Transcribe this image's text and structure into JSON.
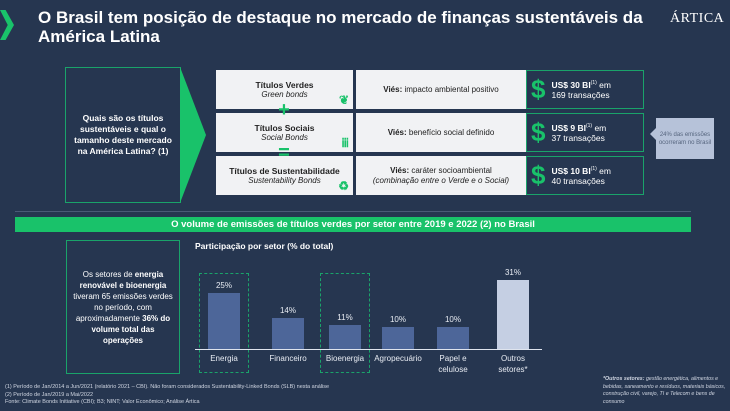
{
  "header": {
    "title": "O Brasil tem posição de destaque no mercado de finanças sustentáveis da América Latina",
    "logo": "ÁRTICA"
  },
  "question": "Quais são os títulos sustentáveis e qual o tamanho deste mercado na América Latina? (1)",
  "bonds": [
    {
      "name": "Títulos Verdes",
      "en": "Green bonds",
      "icon": "plant-in-hand-icon",
      "vies_label": "Viés:",
      "vies": " impacto ambiental positivo",
      "vies_it": "",
      "amount": "US$ 30 BI",
      "sup": "(1)",
      "em": " em",
      "trans": "169 transações"
    },
    {
      "name": "Títulos Sociais",
      "en": "Social Bonds",
      "icon": "people-icon",
      "vies_label": "Viés:",
      "vies": " benefício social definido",
      "vies_it": "",
      "amount": "US$ 9 BI",
      "sup": "(1)",
      "em": " em",
      "trans": "37 transações"
    },
    {
      "name": "Títulos de Sustentabilidade",
      "en": "Sustentability Bonds",
      "icon": "recycle-icon",
      "vies_label": "Viés:",
      "vies": " caráter socioambiental",
      "vies_it": "(combinação entre o Verde e o Social)",
      "amount": "US$ 10 BI",
      "sup": "(1)",
      "em": " em",
      "trans": "40 transações"
    }
  ],
  "operators": [
    "+",
    "="
  ],
  "callout": "24% das emissões ocorreram no Brasil",
  "banner": "O volume de emissões de títulos verdes por setor entre 2019 e 2022 (2) no Brasil",
  "left_text": {
    "a": "Os setores  de ",
    "b": "energia renovável e bioenergia",
    "c": " tiveram 65 emissões verdes no período, com aproximadamente ",
    "d": "36% do volume total das operações"
  },
  "chart_data": {
    "type": "bar",
    "title": "Participação por setor (% do total)",
    "categories": [
      "Energia",
      "Financeiro",
      "Bioenergia",
      "Agropecuário",
      "Papel e celulose",
      "Outros setores*"
    ],
    "values": [
      25,
      14,
      11,
      10,
      10,
      31
    ],
    "labels": [
      "25%",
      "14%",
      "11%",
      "10%",
      "10%",
      "31%"
    ],
    "highlighted": [
      "Energia",
      "Bioenergia"
    ],
    "colors": {
      "default": "#4d6699",
      "other": "#c5cfe3"
    },
    "ylim": [
      0,
      35
    ]
  },
  "footnotes": [
    "(1) Período de Jan/2014 a Jun/2021 (relatório 2021 – CBI). Não foram considerados Sustentability-Linked Bonds (SLB) nesta análise",
    "(2) Período de Jan/2019 a Mai/2022",
    "Fonte: Climate Bonds Initiative (CBI); B3; NINT; Valor Econômico; Análise Ártica"
  ],
  "note": {
    "label": "*Outros setores:",
    "text": " gestão energética, alimentos e bebidas, saneamento e resíduos, materiais básicos, construção civil, varejo, TI e Telecom e bens de consumo"
  }
}
